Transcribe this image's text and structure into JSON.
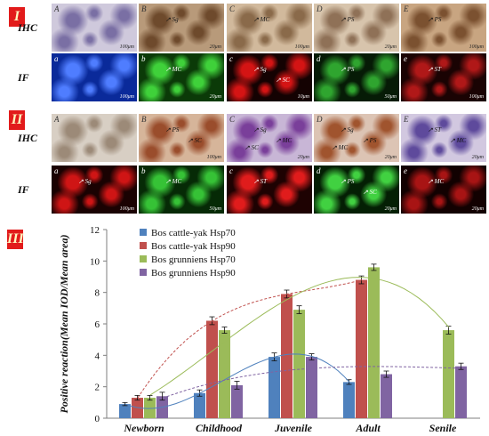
{
  "panels": {
    "sections": [
      {
        "badge": "I",
        "rows": [
          {
            "label": "IHC",
            "kind": "ihc",
            "tiles": [
              {
                "letter": "A",
                "scale": "100μm",
                "bg": "#cfc9dc",
                "spot": "#7a6fa4",
                "annos": []
              },
              {
                "letter": "B",
                "scale": "20μm",
                "bg": "#b89a7a",
                "spot": "#6e4a2c",
                "annos": [
                  "Sg"
                ]
              },
              {
                "letter": "C",
                "scale": "100μm",
                "bg": "#d1b99c",
                "spot": "#8a6a4a",
                "annos": [
                  "MC"
                ]
              },
              {
                "letter": "D",
                "scale": "20μm",
                "bg": "#d7c4ac",
                "spot": "#8f7157",
                "annos": [
                  "PS"
                ]
              },
              {
                "letter": "E",
                "scale": "100μm",
                "bg": "#c8a581",
                "spot": "#7b5130",
                "annos": [
                  "PS"
                ]
              }
            ]
          },
          {
            "label": "IF",
            "kind": "if",
            "tiles": [
              {
                "letter": "a",
                "scale": "100μm",
                "bg": "#0a2a9a",
                "spot": "#4f7dff",
                "annos": []
              },
              {
                "letter": "b",
                "scale": "20μm",
                "bg": "#0b3a08",
                "spot": "#3fd13a",
                "annos": [
                  "MC"
                ]
              },
              {
                "letter": "c",
                "scale": "10μm",
                "bg": "#140202",
                "spot": "#d41414",
                "annos": [
                  "Sg",
                  "SC"
                ]
              },
              {
                "letter": "d",
                "scale": "50μm",
                "bg": "#061b06",
                "spot": "#2fa52f",
                "annos": [
                  "PS"
                ]
              },
              {
                "letter": "e",
                "scale": "100μm",
                "bg": "#1a0303",
                "spot": "#b01818",
                "annos": [
                  "ST"
                ]
              }
            ]
          }
        ]
      },
      {
        "badge": "II",
        "rows": [
          {
            "label": "IHC",
            "kind": "ihc",
            "tiles": [
              {
                "letter": "A",
                "scale": "",
                "bg": "#d8cfc4",
                "spot": "#9c8a78",
                "annos": []
              },
              {
                "letter": "B",
                "scale": "100μm",
                "bg": "#d6b59a",
                "spot": "#9a4d2c",
                "annos": [
                  "PS",
                  "SC"
                ]
              },
              {
                "letter": "C",
                "scale": "20μm",
                "bg": "#c8b6d6",
                "spot": "#7a3f9a",
                "annos": [
                  "Sg",
                  "MC",
                  "SC"
                ]
              },
              {
                "letter": "D",
                "scale": "20μm",
                "bg": "#dcc4b4",
                "spot": "#a0542e",
                "annos": [
                  "Sg",
                  "PS",
                  "MC"
                ]
              },
              {
                "letter": "E",
                "scale": "20μm",
                "bg": "#d2c8e0",
                "spot": "#5e4a9c",
                "annos": [
                  "ST",
                  "MC"
                ]
              }
            ]
          },
          {
            "label": "IF",
            "kind": "if",
            "tiles": [
              {
                "letter": "a",
                "scale": "100μm",
                "bg": "#1a0202",
                "spot": "#cf1515",
                "annos": [
                  "Sg"
                ]
              },
              {
                "letter": "b",
                "scale": "50μm",
                "bg": "#062a06",
                "spot": "#36c236",
                "annos": [
                  "MC"
                ]
              },
              {
                "letter": "c",
                "scale": "",
                "bg": "#1e0202",
                "spot": "#e01c1c",
                "annos": [
                  "ST"
                ]
              },
              {
                "letter": "d",
                "scale": "20μm",
                "bg": "#041f04",
                "spot": "#41d141",
                "annos": [
                  "PS",
                  "SC"
                ]
              },
              {
                "letter": "e",
                "scale": "20μm",
                "bg": "#120101",
                "spot": "#a81414",
                "annos": [
                  "MC"
                ]
              }
            ]
          }
        ]
      }
    ]
  },
  "chart_badge": "III",
  "chart_data": {
    "type": "bar",
    "categories": [
      "Newborn",
      "Childhood",
      "Juvenile",
      "Adult",
      "Senile"
    ],
    "series": [
      {
        "name": "Bos cattle-yak Hsp70",
        "color": "#4f81bd",
        "values": [
          0.9,
          1.6,
          3.9,
          2.3,
          null
        ],
        "errors": [
          0.1,
          0.2,
          0.25,
          0.15,
          null
        ]
      },
      {
        "name": "Bos cattle-yak Hsp90",
        "color": "#c0504d",
        "values": [
          1.3,
          6.2,
          7.9,
          8.8,
          null
        ],
        "errors": [
          0.15,
          0.25,
          0.25,
          0.25,
          null
        ]
      },
      {
        "name": "Bos grunniens Hsp70",
        "color": "#9bbb59",
        "values": [
          1.3,
          5.6,
          6.9,
          9.6,
          5.6
        ],
        "errors": [
          0.15,
          0.2,
          0.25,
          0.2,
          0.25
        ]
      },
      {
        "name": "Bos grunniens Hsp90",
        "color": "#8064a2",
        "values": [
          1.4,
          2.1,
          3.9,
          2.8,
          3.3
        ],
        "errors": [
          0.25,
          0.25,
          0.2,
          0.2,
          0.2
        ]
      }
    ],
    "title": "",
    "xlabel": "",
    "ylabel": "Positive reaction(Mean IOD/Mean area)",
    "ylim": [
      0,
      12
    ],
    "yticks": [
      0,
      2,
      4,
      6,
      8,
      10,
      12
    ],
    "grid": false,
    "legend_position": "top-left",
    "trendlines": "polynomial"
  }
}
